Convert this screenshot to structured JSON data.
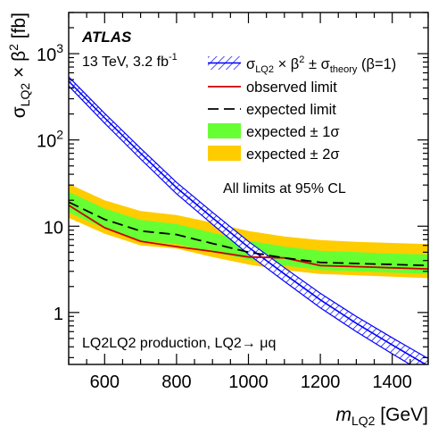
{
  "chart_data": {
    "type": "line",
    "x_scale": "linear",
    "y_scale": "log",
    "xlim": [
      500,
      1500
    ],
    "ylim": [
      0.25,
      3000
    ],
    "xlabel_symbol": "m",
    "xlabel_sub": "LQ2",
    "xlabel_unit": "[GeV]",
    "ylabel_symbol": "σ",
    "ylabel_sub": "LQ2",
    "ylabel_rest": " × β",
    "ylabel_sup": "2",
    "ylabel_unit": " [fb]",
    "x_ticks": [
      600,
      800,
      1000,
      1200,
      1400
    ],
    "x_tick_labels": [
      "600",
      "800",
      "1000",
      "1200",
      "1400"
    ],
    "y_ticks": [
      1,
      10,
      100,
      1000
    ],
    "y_tick_labels": [
      {
        "base": "1",
        "exp": ""
      },
      {
        "base": "10",
        "exp": ""
      },
      {
        "base": "10",
        "exp": "2"
      },
      {
        "base": "10",
        "exp": "3"
      }
    ],
    "grid": false,
    "legend_position": "top-right",
    "experiment": "ATLAS",
    "energy_lumi": "13 TeV, 3.2 fb",
    "energy_lumi_sup": "-1",
    "note_cl": "All limits at 95% CL",
    "note_process": "LQ2LQ2 production, LQ2→ μq",
    "legend": {
      "theory_main": "σ",
      "theory_sub1": "LQ2",
      "theory_mid": " × β",
      "theory_sup": "2",
      "theory_pm": " ± σ",
      "theory_sub2": "theory",
      "theory_tail": " (β=1)",
      "observed": "observed limit",
      "expected": "expected limit",
      "band1": "expected ± 1σ",
      "band2": "expected ± 2σ"
    },
    "colors": {
      "theory": "#0000ff",
      "observed": "#cc0000",
      "expected": "#000000",
      "band1": "#66ff33",
      "band2": "#ffcc00"
    },
    "series": [
      {
        "name": "observed limit",
        "x": [
          500,
          600,
          700,
          800,
          900,
          1000,
          1100,
          1200,
          1300,
          1400,
          1500
        ],
        "y": [
          17.5,
          9.6,
          6.7,
          5.8,
          5.1,
          4.4,
          4.3,
          3.5,
          3.4,
          3.3,
          3.2
        ]
      },
      {
        "name": "expected limit",
        "x": [
          500,
          600,
          700,
          800,
          900,
          1000,
          1100,
          1200,
          1300,
          1400,
          1500
        ],
        "y": [
          19.0,
          12.0,
          8.8,
          8.0,
          6.3,
          5.0,
          4.3,
          3.8,
          3.7,
          3.6,
          3.5
        ]
      },
      {
        "name": "expected ± 1σ",
        "x": [
          500,
          600,
          700,
          800,
          900,
          1000,
          1100,
          1200,
          1300,
          1400,
          1500
        ],
        "y_low": [
          14.5,
          9.4,
          6.8,
          6.2,
          5.0,
          4.1,
          3.5,
          3.1,
          3.0,
          2.9,
          2.8
        ],
        "y_high": [
          25.0,
          16.0,
          11.8,
          10.6,
          8.4,
          6.8,
          5.8,
          5.2,
          5.0,
          4.8,
          4.7
        ]
      },
      {
        "name": "expected ± 2σ",
        "x": [
          500,
          600,
          700,
          800,
          900,
          1000,
          1100,
          1200,
          1300,
          1400,
          1500
        ],
        "y_low": [
          12.5,
          8.2,
          6.0,
          5.5,
          4.4,
          3.6,
          3.1,
          2.8,
          2.7,
          2.6,
          2.5
        ],
        "y_high": [
          31.0,
          20.0,
          15.0,
          13.5,
          11.0,
          8.8,
          7.6,
          6.9,
          6.6,
          6.4,
          6.2
        ]
      },
      {
        "name": "σ_LQ2 × β² (β=1)",
        "x": [
          500,
          600,
          700,
          800,
          900,
          1000,
          1100,
          1200,
          1300,
          1400,
          1500
        ],
        "y": [
          480,
          180,
          70,
          28,
          12.5,
          5.7,
          2.8,
          1.4,
          0.75,
          0.42,
          0.24
        ],
        "rel_uncertainty": [
          0.12,
          0.13,
          0.14,
          0.15,
          0.16,
          0.17,
          0.18,
          0.19,
          0.2,
          0.21,
          0.22
        ]
      }
    ]
  }
}
